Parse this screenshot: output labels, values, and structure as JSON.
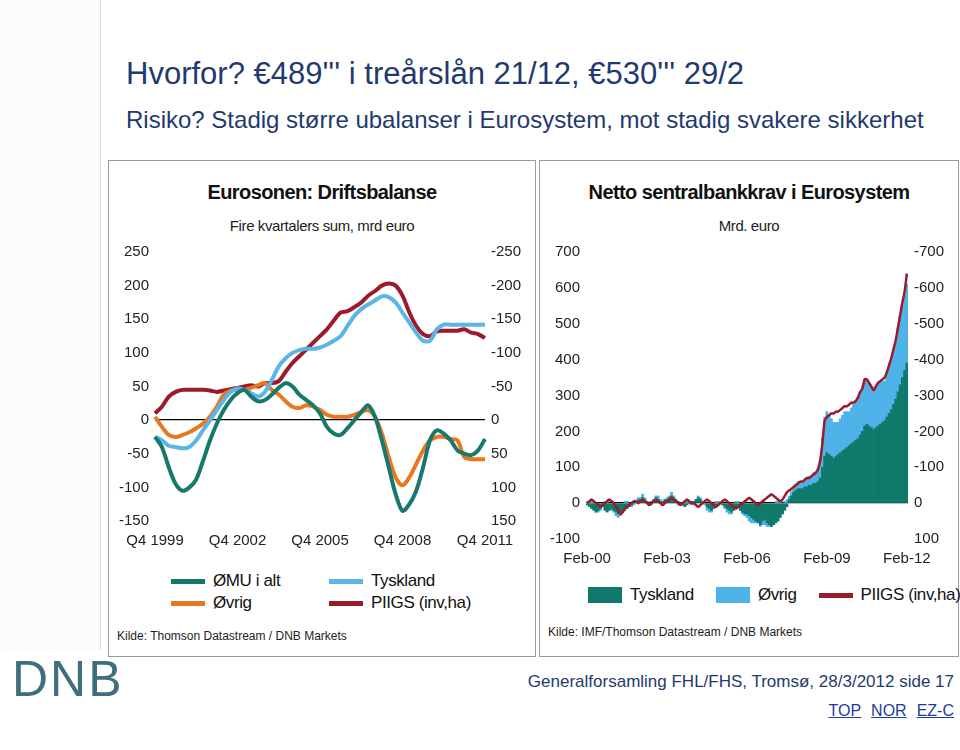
{
  "slide": {
    "title": "Hvorfor? €489''' i treårslån 21/12, €530''' 29/2",
    "subtitle": "Risiko? Stadig større ubalanser i Eurosystem, mot stadig svakere sikkerhet",
    "footer": "Generalforsamling FHL/FHS, Tromsø, 28/3/2012 side 17",
    "links": [
      "TOP",
      "NOR",
      "EZ-C"
    ],
    "logo": "DNB"
  },
  "chart_data": [
    {
      "type": "line",
      "title": "Eurosonen: Driftsbalanse",
      "subtitle": "Fire kvartalers sum, mrd euro",
      "source": "Kilde: Thomson Datastream / DNB Markets",
      "categories": [
        "Q4 1999",
        null,
        null,
        null,
        null,
        null,
        null,
        null,
        null,
        null,
        null,
        null,
        "Q4 2002",
        null,
        null,
        null,
        null,
        null,
        null,
        null,
        null,
        null,
        null,
        null,
        "Q4 2005",
        null,
        null,
        null,
        null,
        null,
        null,
        null,
        null,
        null,
        null,
        null,
        "Q4 2008",
        null,
        null,
        null,
        null,
        null,
        null,
        null,
        null,
        null,
        null,
        null,
        "Q4 2011"
      ],
      "ylim": [
        -150,
        250
      ],
      "yticks": [
        -150,
        -100,
        -50,
        0,
        50,
        100,
        150,
        200,
        250
      ],
      "y2lim": [
        150,
        -250
      ],
      "y2ticks": [
        150,
        100,
        50,
        0,
        -50,
        -100,
        -150,
        -200,
        -250
      ],
      "grid": false,
      "series": [
        {
          "name": "ØMU i alt",
          "color": "#17796d",
          "values": [
            -25,
            -40,
            -70,
            -95,
            -105,
            -100,
            -88,
            -60,
            -30,
            -5,
            15,
            30,
            40,
            45,
            35,
            28,
            30,
            38,
            48,
            55,
            50,
            38,
            30,
            22,
            10,
            -10,
            -20,
            -22,
            -12,
            0,
            12,
            22,
            5,
            -30,
            -70,
            -110,
            -135,
            -125,
            -105,
            -70,
            -30,
            -15,
            -20,
            -30,
            -45,
            -50,
            -52,
            -45,
            -28
          ]
        },
        {
          "name": "Tyskland",
          "color": "#5cb5e6",
          "values": [
            -25,
            -30,
            -38,
            -40,
            -42,
            -40,
            -30,
            -15,
            0,
            15,
            30,
            42,
            47,
            45,
            40,
            35,
            42,
            60,
            80,
            92,
            100,
            104,
            106,
            106,
            108,
            112,
            118,
            125,
            140,
            155,
            165,
            172,
            178,
            184,
            183,
            175,
            160,
            145,
            130,
            118,
            118,
            135,
            142,
            142,
            142,
            142,
            142,
            142,
            142
          ]
        },
        {
          "name": "Øvrig",
          "color": "#e8781f",
          "values": [
            5,
            -10,
            -22,
            -25,
            -22,
            -18,
            -12,
            -5,
            5,
            20,
            38,
            44,
            45,
            45,
            48,
            52,
            55,
            45,
            38,
            28,
            20,
            18,
            22,
            20,
            15,
            8,
            5,
            5,
            5,
            8,
            12,
            15,
            5,
            -20,
            -55,
            -85,
            -97,
            -85,
            -65,
            -45,
            -30,
            -25,
            -25,
            -28,
            -30,
            -55,
            -58,
            -58,
            -58
          ]
        },
        {
          "name": "PIIGS (inv,ha)",
          "color": "#9c1b2b",
          "axis": "y2",
          "values": [
            -10,
            -20,
            -35,
            -42,
            -45,
            -45,
            -45,
            -45,
            -44,
            -42,
            -44,
            -46,
            -48,
            -50,
            -52,
            -50,
            -55,
            -55,
            -58,
            -72,
            -85,
            -95,
            -105,
            -115,
            -125,
            -135,
            -148,
            -160,
            -162,
            -168,
            -175,
            -185,
            -192,
            -200,
            -203,
            -200,
            -185,
            -160,
            -140,
            -128,
            -125,
            -132,
            -133,
            -133,
            -133,
            -135,
            -130,
            -128,
            -122
          ]
        }
      ]
    },
    {
      "type": "bar",
      "stacked": true,
      "title": "Netto sentralbankkrav i Eurosystem",
      "subtitle": "Mrd. euro",
      "source": "Kilde: IMF/Thomson Datastream / DNB Markets",
      "categories": [
        "Feb-00",
        null,
        null,
        null,
        null,
        null,
        null,
        null,
        null,
        null,
        null,
        null,
        null,
        null,
        null,
        null,
        null,
        null,
        null,
        null,
        null,
        null,
        null,
        null,
        null,
        null,
        null,
        null,
        null,
        null,
        null,
        null,
        null,
        null,
        null,
        null,
        "Feb-03",
        null,
        null,
        null,
        null,
        null,
        null,
        null,
        null,
        null,
        null,
        null,
        null,
        null,
        null,
        null,
        null,
        null,
        null,
        null,
        null,
        null,
        null,
        null,
        null,
        null,
        null,
        null,
        null,
        null,
        null,
        null,
        null,
        null,
        null,
        null,
        "Feb-06",
        null,
        null,
        null,
        null,
        null,
        null,
        null,
        null,
        null,
        null,
        null,
        null,
        null,
        null,
        null,
        null,
        null,
        null,
        null,
        null,
        null,
        null,
        null,
        null,
        null,
        null,
        null,
        null,
        null,
        null,
        null,
        null,
        null,
        null,
        null,
        "Feb-09",
        null,
        null,
        null,
        null,
        null,
        null,
        null,
        null,
        null,
        null,
        null,
        null,
        null,
        null,
        null,
        null,
        null,
        null,
        null,
        null,
        null,
        null,
        null,
        null,
        null,
        null,
        null,
        null,
        null,
        null,
        null,
        null,
        null,
        null,
        null,
        "Feb-12"
      ],
      "ylim": [
        -100,
        700
      ],
      "yticks": [
        -100,
        0,
        100,
        200,
        300,
        400,
        500,
        600,
        700
      ],
      "y2lim": [
        100,
        -700
      ],
      "y2ticks": [
        100,
        0,
        -100,
        -200,
        -300,
        -400,
        -500,
        -600,
        -700
      ],
      "grid": false,
      "series": [
        {
          "name": "Tyskland",
          "color": "#0f7a6c",
          "values": [
            -5,
            -10,
            -15,
            -20,
            -25,
            -20,
            -15,
            -10,
            -20,
            -25,
            -20,
            -15,
            -20,
            -25,
            -30,
            -30,
            -25,
            -20,
            -15,
            -10,
            -5,
            0,
            5,
            10,
            10,
            15,
            10,
            5,
            0,
            5,
            10,
            15,
            10,
            5,
            5,
            10,
            10,
            15,
            20,
            15,
            10,
            5,
            0,
            -5,
            -10,
            -5,
            0,
            5,
            5,
            10,
            15,
            10,
            5,
            0,
            -10,
            -15,
            -20,
            -15,
            -10,
            -5,
            0,
            -5,
            -10,
            -15,
            -20,
            -25,
            -20,
            -15,
            -10,
            -20,
            -25,
            -30,
            -30,
            -35,
            -40,
            -45,
            -50,
            -55,
            -60,
            -50,
            -45,
            -55,
            -60,
            -65,
            -60,
            -55,
            -50,
            -40,
            -30,
            -20,
            -10,
            10,
            20,
            30,
            35,
            40,
            40,
            40,
            45,
            45,
            50,
            50,
            55,
            55,
            60,
            70,
            100,
            130,
            140,
            135,
            130,
            125,
            130,
            135,
            140,
            145,
            150,
            155,
            160,
            165,
            170,
            175,
            180,
            190,
            200,
            215,
            220,
            215,
            210,
            205,
            210,
            215,
            220,
            225,
            230,
            240,
            250,
            260,
            275,
            290,
            310,
            330,
            350,
            370,
            390
          ]
        },
        {
          "name": "Øvrig",
          "color": "#4fb2e8",
          "values": [
            5,
            5,
            10,
            5,
            0,
            -5,
            -5,
            0,
            5,
            5,
            0,
            -5,
            -5,
            -10,
            -10,
            -5,
            0,
            5,
            5,
            0,
            -5,
            -5,
            0,
            5,
            5,
            10,
            5,
            0,
            -5,
            -5,
            0,
            5,
            10,
            5,
            0,
            0,
            5,
            5,
            10,
            5,
            0,
            -5,
            -5,
            0,
            5,
            5,
            0,
            -5,
            -5,
            0,
            5,
            5,
            0,
            -5,
            -10,
            -10,
            -5,
            0,
            5,
            5,
            5,
            0,
            -5,
            -10,
            -10,
            -5,
            0,
            5,
            5,
            0,
            -5,
            -5,
            -10,
            -15,
            -15,
            -10,
            -5,
            0,
            -5,
            -10,
            -15,
            -10,
            -5,
            0,
            0,
            5,
            10,
            5,
            0,
            5,
            10,
            10,
            12,
            15,
            18,
            20,
            20,
            20,
            20,
            25,
            25,
            25,
            30,
            30,
            35,
            50,
            80,
            110,
            115,
            110,
            105,
            100,
            95,
            90,
            95,
            100,
            105,
            100,
            95,
            100,
            105,
            110,
            115,
            120,
            125,
            130,
            125,
            120,
            115,
            110,
            115,
            120,
            120,
            115,
            110,
            120,
            130,
            140,
            150,
            160,
            175,
            190,
            200,
            210,
            220
          ]
        },
        {
          "name": "PIIGS (inv,ha)",
          "color": "#9c1b2b",
          "type": "line",
          "axis": "y2",
          "values": [
            0,
            -5,
            -10,
            -5,
            0,
            5,
            10,
            5,
            0,
            -5,
            -10,
            -5,
            0,
            10,
            20,
            30,
            25,
            15,
            10,
            5,
            0,
            -5,
            -5,
            0,
            -5,
            -10,
            -5,
            0,
            5,
            0,
            -5,
            -10,
            -5,
            0,
            5,
            0,
            -5,
            -10,
            -15,
            -10,
            -5,
            0,
            5,
            0,
            -5,
            -10,
            -5,
            0,
            0,
            5,
            10,
            5,
            0,
            -5,
            -10,
            -5,
            0,
            5,
            10,
            5,
            0,
            -5,
            -10,
            -5,
            0,
            5,
            10,
            15,
            10,
            5,
            0,
            -5,
            -10,
            -15,
            -10,
            -5,
            0,
            5,
            0,
            -5,
            -10,
            -15,
            -20,
            -25,
            -20,
            -15,
            -10,
            -5,
            -10,
            -20,
            -30,
            -35,
            -40,
            -45,
            -50,
            -55,
            -60,
            -60,
            -65,
            -70,
            -70,
            -75,
            -80,
            -85,
            -95,
            -120,
            -170,
            -230,
            -240,
            -245,
            -250,
            -250,
            -255,
            -255,
            -260,
            -265,
            -270,
            -270,
            -275,
            -280,
            -280,
            -285,
            -295,
            -310,
            -320,
            -345,
            -345,
            -335,
            -325,
            -315,
            -325,
            -335,
            -340,
            -345,
            -350,
            -365,
            -385,
            -405,
            -430,
            -455,
            -490,
            -525,
            -560,
            -590,
            -640
          ]
        }
      ]
    }
  ]
}
